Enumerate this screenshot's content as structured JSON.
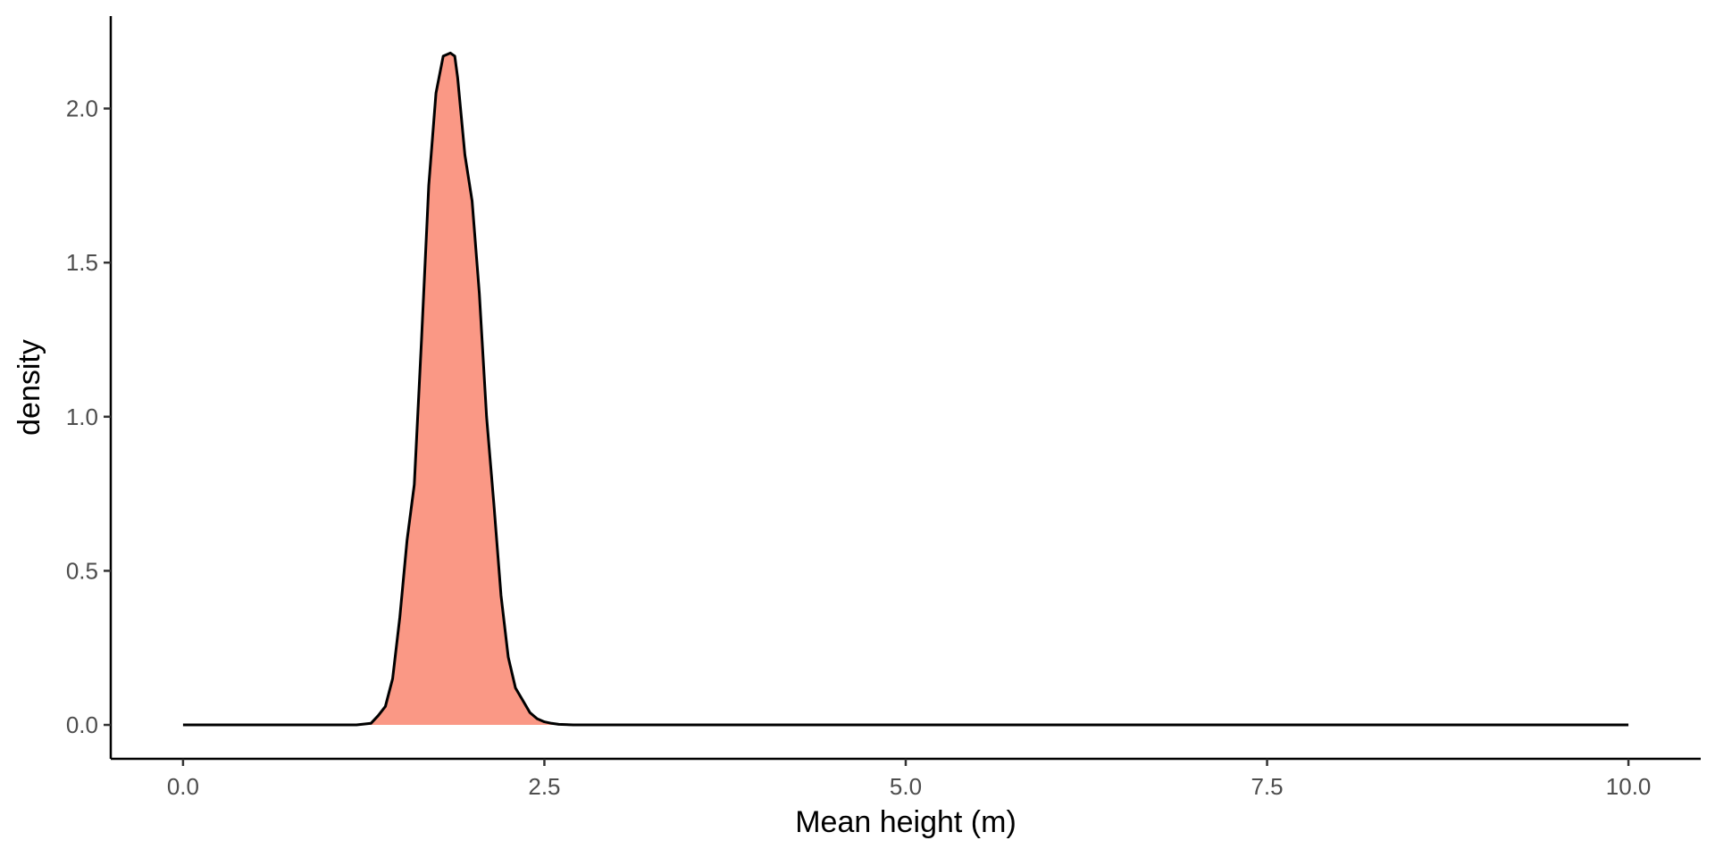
{
  "chart_data": {
    "type": "area",
    "xlabel": "Mean height (m)",
    "ylabel": "density",
    "xlim": [
      -0.5,
      10.5
    ],
    "ylim": [
      -0.11,
      2.3
    ],
    "x_ticks": [
      {
        "value": 0.0,
        "label": "0.0"
      },
      {
        "value": 2.5,
        "label": "2.5"
      },
      {
        "value": 5.0,
        "label": "5.0"
      },
      {
        "value": 7.5,
        "label": "7.5"
      },
      {
        "value": 10.0,
        "label": "10.0"
      }
    ],
    "y_ticks": [
      {
        "value": 0.0,
        "label": "0.0"
      },
      {
        "value": 0.5,
        "label": "0.5"
      },
      {
        "value": 1.0,
        "label": "1.0"
      },
      {
        "value": 1.5,
        "label": "1.5"
      },
      {
        "value": 2.0,
        "label": "2.0"
      }
    ],
    "fill_color": "#fa9885",
    "line_color": "#000000",
    "grid": false,
    "legend": "none",
    "series": [
      {
        "x": [
          0.0,
          0.5,
          1.0,
          1.2,
          1.3,
          1.35,
          1.4,
          1.45,
          1.5,
          1.55,
          1.6,
          1.65,
          1.7,
          1.75,
          1.8,
          1.85,
          1.88,
          1.9,
          1.93,
          1.95,
          2.0,
          2.05,
          2.1,
          2.15,
          2.2,
          2.25,
          2.3,
          2.35,
          2.4,
          2.45,
          2.5,
          2.55,
          2.6,
          2.7,
          3.0,
          4.0,
          5.0,
          6.0,
          7.0,
          8.0,
          9.0,
          10.0
        ],
        "y": [
          0.0,
          0.0,
          0.0,
          0.0,
          0.005,
          0.03,
          0.06,
          0.15,
          0.35,
          0.6,
          0.78,
          1.25,
          1.75,
          2.05,
          2.17,
          2.18,
          2.17,
          2.1,
          1.95,
          1.85,
          1.7,
          1.4,
          1.0,
          0.72,
          0.42,
          0.22,
          0.12,
          0.08,
          0.04,
          0.02,
          0.01,
          0.005,
          0.002,
          0.0,
          0.0,
          0.0,
          0.0,
          0.0,
          0.0,
          0.0,
          0.0,
          0.0
        ]
      }
    ]
  }
}
